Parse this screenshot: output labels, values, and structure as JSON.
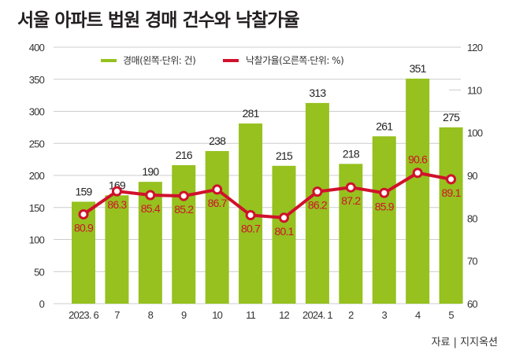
{
  "header": {
    "title": "서울 아파트 법원 경매 건수와 낙찰가율"
  },
  "footer": {
    "source": "자료 | 지지옥션"
  },
  "colors": {
    "bar": "#96c11f",
    "line": "#d0112b",
    "grid": "#cccccc",
    "text": "#333333"
  },
  "chart_data": {
    "type": "bar+line",
    "title": "서울 아파트 법원 경매 건수와 낙찰가율",
    "categories": [
      "2023. 6",
      "7",
      "8",
      "9",
      "10",
      "11",
      "12",
      "2024. 1",
      "2",
      "3",
      "4",
      "5"
    ],
    "series": [
      {
        "name": "경매(왼쪽·단위: 건)",
        "type": "bar",
        "axis": "left",
        "values": [
          159,
          169,
          190,
          216,
          238,
          281,
          215,
          313,
          218,
          261,
          351,
          275
        ]
      },
      {
        "name": "낙찰가율(오른쪽·단위: %)",
        "type": "line",
        "axis": "right",
        "values": [
          80.9,
          86.3,
          85.4,
          85.2,
          86.7,
          80.7,
          80.1,
          86.2,
          87.2,
          85.9,
          90.6,
          89.1
        ]
      }
    ],
    "left_axis": {
      "ylim": [
        0,
        400
      ],
      "ticks": [
        "0",
        "50",
        "100",
        "150",
        "200",
        "250",
        "300",
        "350",
        "400"
      ]
    },
    "right_axis": {
      "ylim": [
        60,
        120
      ],
      "ticks": [
        "60",
        "70",
        "80",
        "90",
        "100",
        "110",
        "120"
      ]
    },
    "legend": {
      "position": "top"
    },
    "grid": true,
    "xlabel": "",
    "ylabel": ""
  }
}
